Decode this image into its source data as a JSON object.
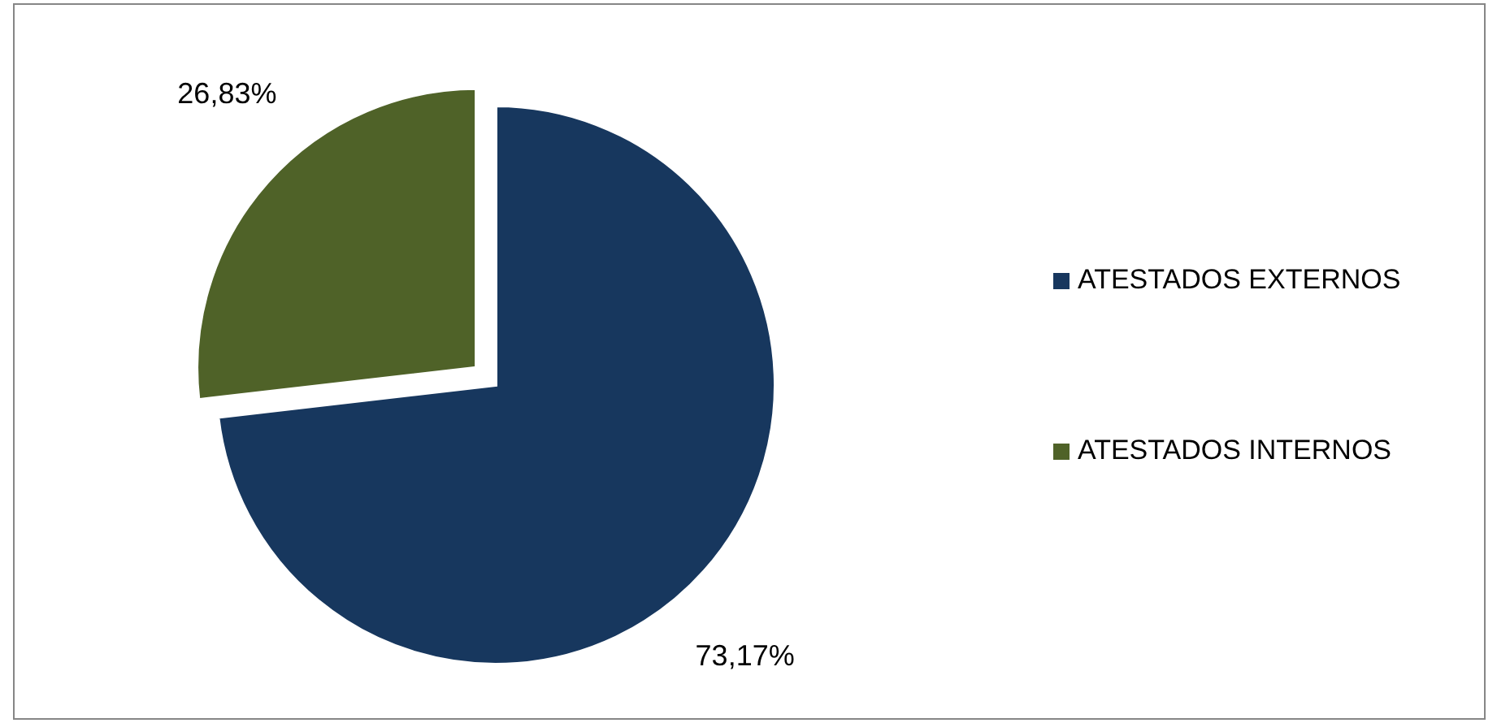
{
  "chart_data": {
    "type": "pie",
    "categories": [
      "ATESTADOS EXTERNOS",
      "ATESTADOS INTERNOS"
    ],
    "values": [
      73.17,
      26.83
    ],
    "colors": [
      "#17375e",
      "#4f6228"
    ],
    "value_labels": [
      "73,17%",
      "26,83%"
    ],
    "legend": "right"
  }
}
